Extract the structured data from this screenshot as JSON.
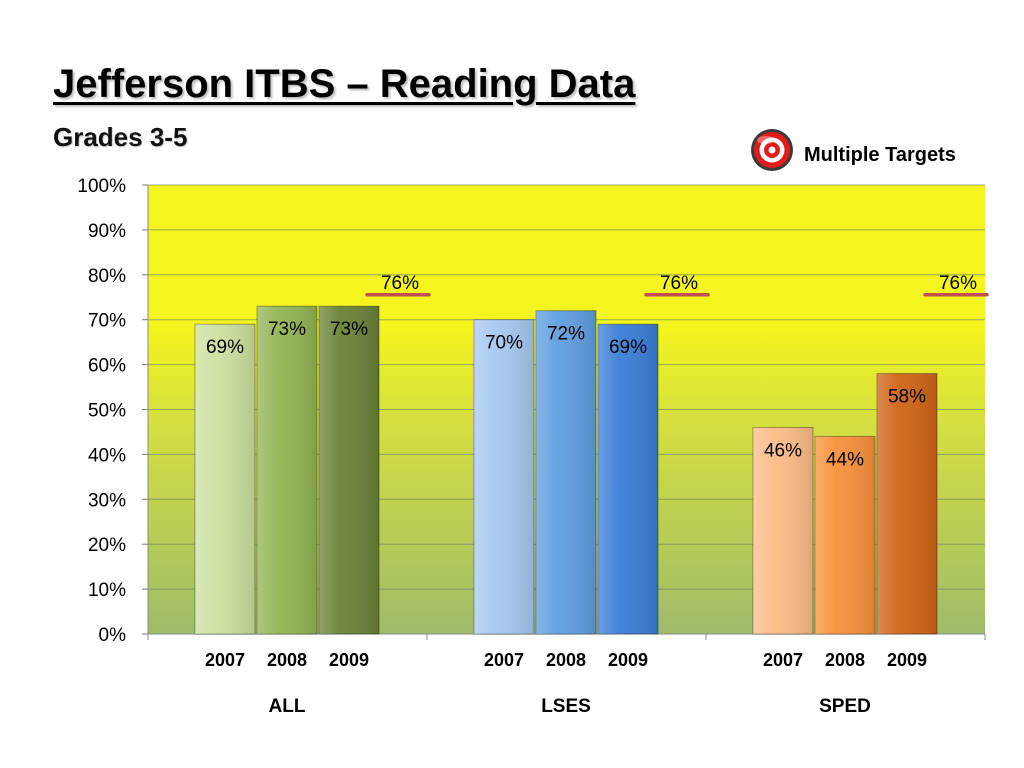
{
  "title": "Jefferson ITBS – Reading Data",
  "subtitle": "Grades 3-5",
  "legend": {
    "label": "Multiple Targets",
    "icon": "target-icon"
  },
  "chart_data": {
    "type": "bar",
    "ylim": [
      0,
      100
    ],
    "ytick_step": 10,
    "y_unit": "%",
    "grid": true,
    "years": [
      "2007",
      "2008",
      "2009"
    ],
    "groups": [
      {
        "name": "ALL",
        "values": [
          69,
          73,
          73
        ],
        "target": 76,
        "target_label": "76%",
        "colors": [
          "#cde0a0",
          "#93b553",
          "#6a8236"
        ]
      },
      {
        "name": "LSES",
        "values": [
          70,
          72,
          69
        ],
        "target": 76,
        "target_label": "76%",
        "colors": [
          "#a6c8f2",
          "#609ee0",
          "#3a7ed6"
        ]
      },
      {
        "name": "SPED",
        "values": [
          46,
          44,
          58
        ],
        "target": 76,
        "target_label": "76%",
        "colors": [
          "#fcbc86",
          "#f8913a",
          "#d06416"
        ]
      }
    ],
    "background_gradient": [
      "#f4f41e",
      "#d6e040",
      "#9ebb6a"
    ],
    "target_line_color": "#c0504d"
  }
}
